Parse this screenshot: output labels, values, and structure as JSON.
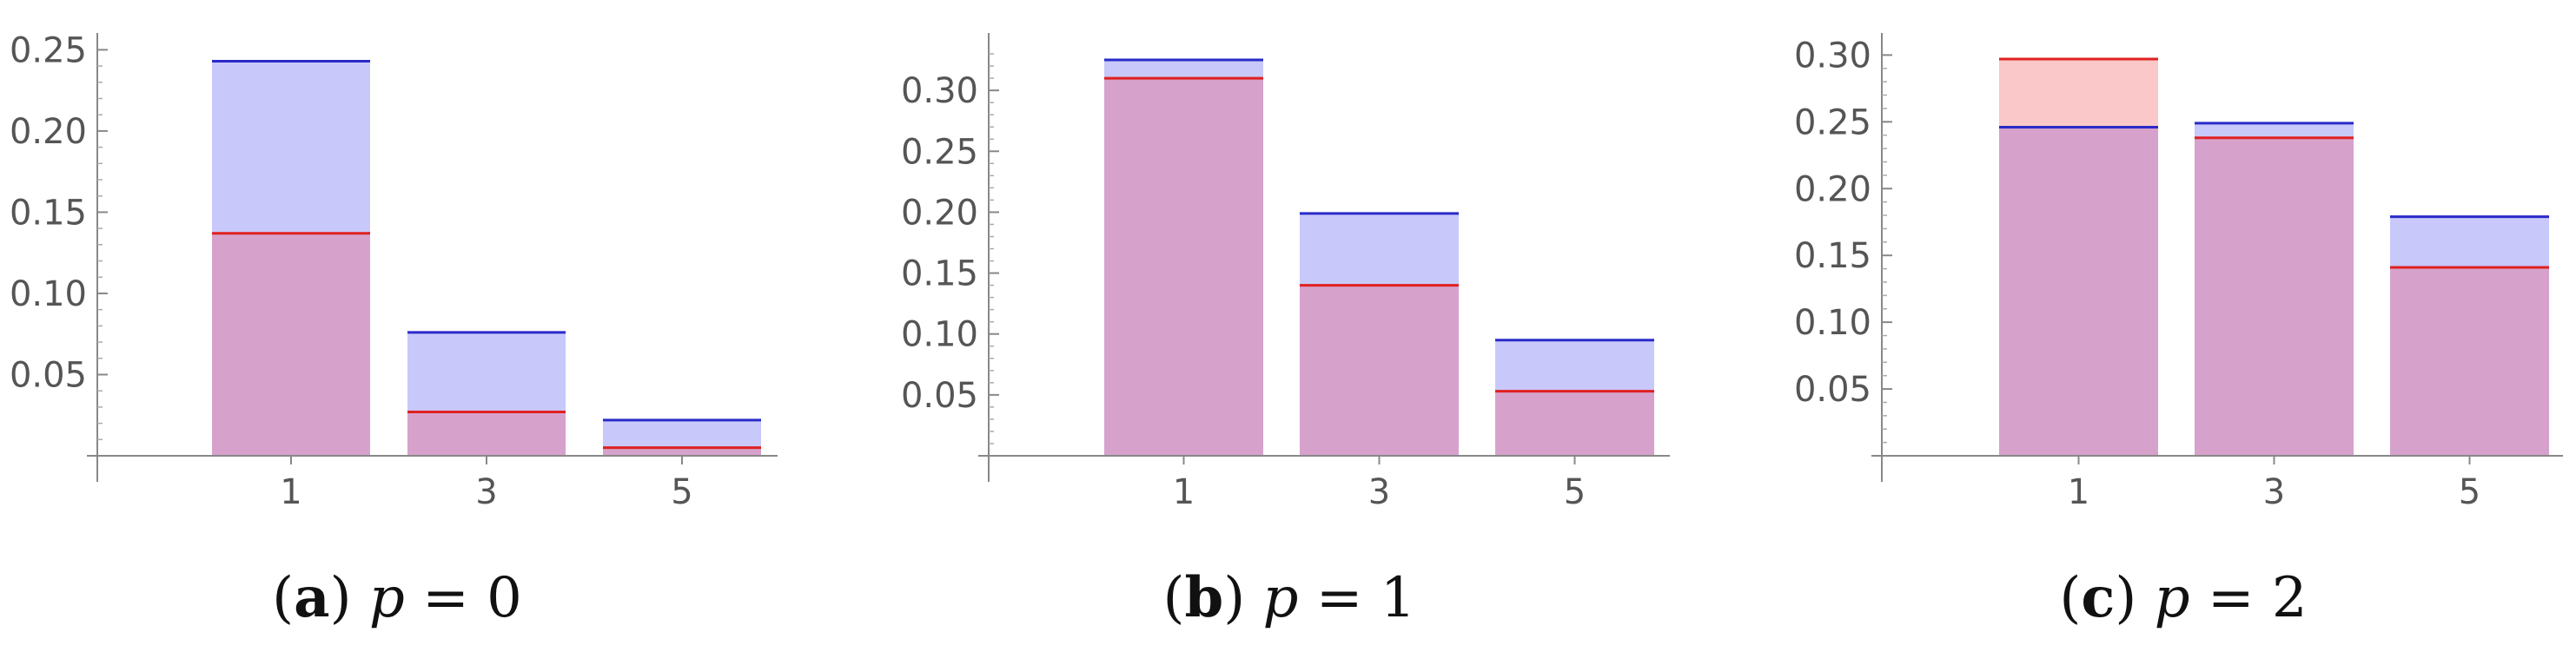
{
  "chart_data": [
    {
      "type": "bar",
      "panel": "a",
      "caption": {
        "letter": "a",
        "variable": "p",
        "value": "0"
      },
      "categories": [
        "1",
        "3",
        "5"
      ],
      "series": [
        {
          "color": "#2a2ac8",
          "fill": "#c8c8fa",
          "values": [
            0.243,
            0.076,
            0.022
          ]
        },
        {
          "color": "#e02020",
          "fill": "#fac8c8",
          "values": [
            0.137,
            0.027,
            0.005
          ]
        }
      ],
      "ylim": [
        0,
        0.255
      ],
      "yticks": [
        0.05,
        0.1,
        0.15,
        0.2,
        0.25
      ],
      "ytick_labels": [
        "0.05",
        "0.10",
        "0.15",
        "0.20",
        "0.25"
      ],
      "grid": false
    },
    {
      "type": "bar",
      "panel": "b",
      "caption": {
        "letter": "b",
        "variable": "p",
        "value": "1"
      },
      "categories": [
        "1",
        "3",
        "5"
      ],
      "series": [
        {
          "color": "#2a2ac8",
          "fill": "#c8c8fa",
          "values": [
            0.325,
            0.199,
            0.095
          ]
        },
        {
          "color": "#e02020",
          "fill": "#fac8c8",
          "values": [
            0.31,
            0.14,
            0.053
          ]
        }
      ],
      "ylim": [
        0,
        0.34
      ],
      "yticks": [
        0.05,
        0.1,
        0.15,
        0.2,
        0.25,
        0.3
      ],
      "ytick_labels": [
        "0.05",
        "0.10",
        "0.15",
        "0.20",
        "0.25",
        "0.30"
      ],
      "grid": false
    },
    {
      "type": "bar",
      "panel": "c",
      "caption": {
        "letter": "c",
        "variable": "p",
        "value": "2"
      },
      "categories": [
        "1",
        "3",
        "5"
      ],
      "series": [
        {
          "color": "#2a2ac8",
          "fill": "#c8c8fa",
          "values": [
            0.246,
            0.249,
            0.179
          ]
        },
        {
          "color": "#e02020",
          "fill": "#fac8c8",
          "values": [
            0.297,
            0.238,
            0.141
          ]
        }
      ],
      "ylim": [
        0,
        0.31
      ],
      "yticks": [
        0.05,
        0.1,
        0.15,
        0.2,
        0.25,
        0.3
      ],
      "ytick_labels": [
        "0.05",
        "0.10",
        "0.15",
        "0.20",
        "0.25",
        "0.30"
      ],
      "grid": false
    }
  ]
}
